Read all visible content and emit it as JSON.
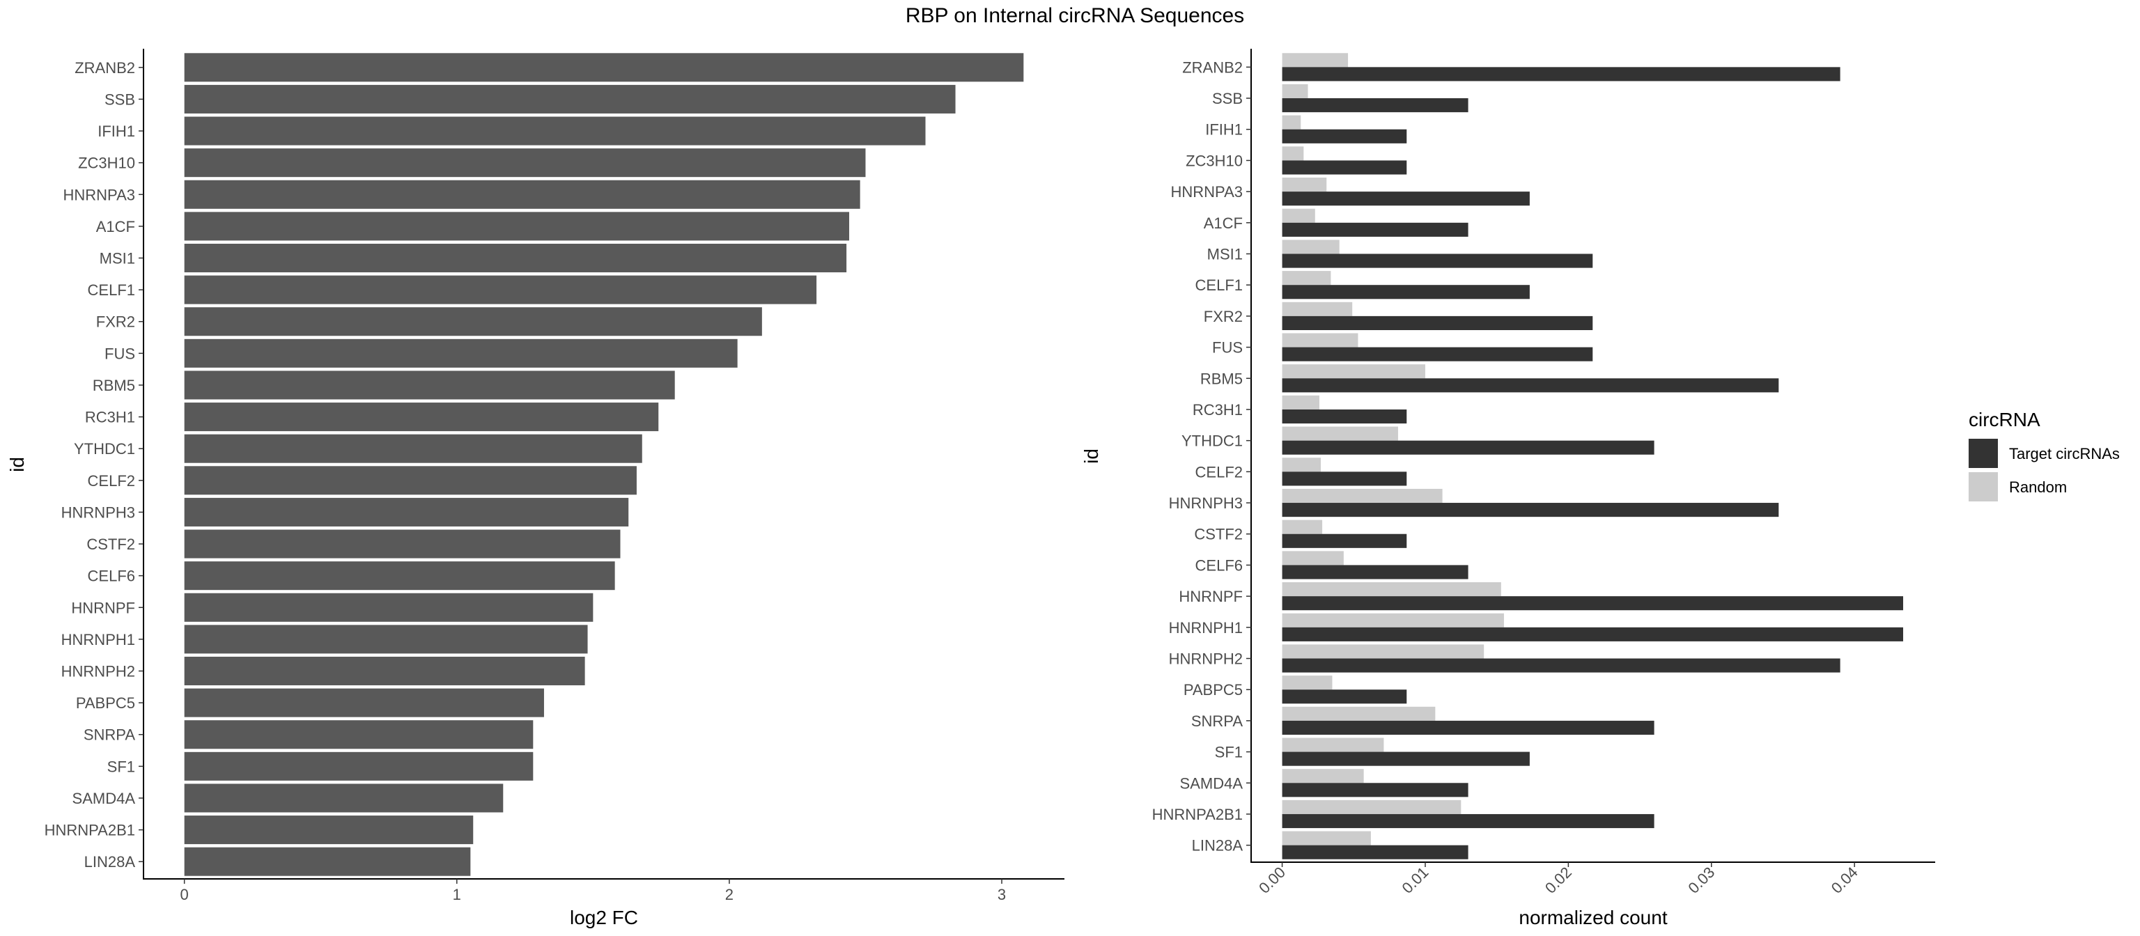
{
  "title": "RBP on Internal circRNA Sequences",
  "chart_data": [
    {
      "type": "bar",
      "orientation": "horizontal",
      "xlabel": "log2 FC",
      "ylabel": "id",
      "xlim": [
        -0.15,
        3.23
      ],
      "xticks": [
        "0",
        "1",
        "2",
        "3"
      ],
      "grid": false,
      "bar_color": "#595959",
      "categories": [
        "ZRANB2",
        "SSB",
        "IFIH1",
        "ZC3H10",
        "HNRNPA3",
        "A1CF",
        "MSI1",
        "CELF1",
        "FXR2",
        "FUS",
        "RBM5",
        "RC3H1",
        "YTHDC1",
        "CELF2",
        "HNRNPH3",
        "CSTF2",
        "CELF6",
        "HNRNPF",
        "HNRNPH1",
        "HNRNPH2",
        "PABPC5",
        "SNRPA",
        "SF1",
        "SAMD4A",
        "HNRNPA2B1",
        "LIN28A"
      ],
      "values": [
        3.08,
        2.83,
        2.72,
        2.5,
        2.48,
        2.44,
        2.43,
        2.32,
        2.12,
        2.03,
        1.8,
        1.74,
        1.68,
        1.66,
        1.63,
        1.6,
        1.58,
        1.5,
        1.48,
        1.47,
        1.32,
        1.28,
        1.28,
        1.17,
        1.06,
        1.05
      ]
    },
    {
      "type": "bar",
      "orientation": "horizontal",
      "grouped": true,
      "xlabel": "normalized count",
      "ylabel": "id",
      "xlim": [
        -0.00217,
        0.04564
      ],
      "xticks": [
        "0.00",
        "0.01",
        "0.02",
        "0.03",
        "0.04"
      ],
      "xtick_rotation": -45,
      "grid": false,
      "legend": {
        "title": "circRNA",
        "position": "right"
      },
      "categories": [
        "ZRANB2",
        "SSB",
        "IFIH1",
        "ZC3H10",
        "HNRNPA3",
        "A1CF",
        "MSI1",
        "CELF1",
        "FXR2",
        "FUS",
        "RBM5",
        "RC3H1",
        "YTHDC1",
        "CELF2",
        "HNRNPH3",
        "CSTF2",
        "CELF6",
        "HNRNPF",
        "HNRNPH1",
        "HNRNPH2",
        "PABPC5",
        "SNRPA",
        "SF1",
        "SAMD4A",
        "HNRNPA2B1",
        "LIN28A"
      ],
      "series": [
        {
          "name": "Target circRNAs",
          "color": "#333333",
          "values": [
            0.039,
            0.013,
            0.0087,
            0.0087,
            0.0173,
            0.013,
            0.0217,
            0.0173,
            0.0217,
            0.0217,
            0.0347,
            0.0087,
            0.026,
            0.0087,
            0.0347,
            0.0087,
            0.013,
            0.0434,
            0.0434,
            0.039,
            0.0087,
            0.026,
            0.0173,
            0.013,
            0.026,
            0.013
          ]
        },
        {
          "name": "Random",
          "color": "#cccccc",
          "values": [
            0.0046,
            0.0018,
            0.0013,
            0.0015,
            0.0031,
            0.0023,
            0.004,
            0.0034,
            0.0049,
            0.0053,
            0.01,
            0.0026,
            0.0081,
            0.0027,
            0.0112,
            0.0028,
            0.0043,
            0.0153,
            0.0155,
            0.0141,
            0.0035,
            0.0107,
            0.0071,
            0.0057,
            0.0125,
            0.0062
          ]
        }
      ]
    }
  ]
}
